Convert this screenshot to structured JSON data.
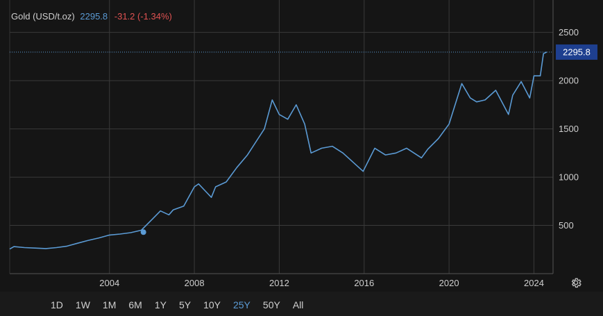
{
  "header": {
    "name": "Gold (USD/t.oz)",
    "price": "2295.8",
    "change": "-31.2 (-1.34%)"
  },
  "last_price_tag": "2295.8",
  "ranges": [
    {
      "label": "1D",
      "active": false
    },
    {
      "label": "1W",
      "active": false
    },
    {
      "label": "1M",
      "active": false
    },
    {
      "label": "6M",
      "active": false
    },
    {
      "label": "1Y",
      "active": false
    },
    {
      "label": "5Y",
      "active": false
    },
    {
      "label": "10Y",
      "active": false
    },
    {
      "label": "25Y",
      "active": true
    },
    {
      "label": "50Y",
      "active": false
    },
    {
      "label": "All",
      "active": false
    }
  ],
  "colors": {
    "line": "#5b9bd5",
    "price": "#5b9bd5",
    "change": "#e05252",
    "grid": "#3a3a3a",
    "tag_bg": "#1e3f8f"
  },
  "icons": {
    "settings": "gear-icon"
  },
  "chart_data": {
    "type": "line",
    "title": "Gold (USD/t.oz)",
    "xlabel": "",
    "ylabel": "",
    "x_ticks": [
      2004,
      2008,
      2012,
      2016,
      2020,
      2024
    ],
    "y_ticks": [
      500,
      1000,
      1500,
      2000,
      2500
    ],
    "xlim": [
      1999.3,
      2024.9
    ],
    "ylim": [
      0,
      2620
    ],
    "grid": true,
    "series": [
      {
        "name": "Gold",
        "x": [
          1999.3,
          1999.5,
          2000.0,
          2000.5,
          2001.0,
          2001.5,
          2002.0,
          2002.5,
          2003.0,
          2003.5,
          2004.0,
          2004.5,
          2005.0,
          2005.5,
          2006.0,
          2006.4,
          2006.8,
          2007.0,
          2007.5,
          2008.0,
          2008.2,
          2008.5,
          2008.8,
          2009.0,
          2009.5,
          2010.0,
          2010.5,
          2011.0,
          2011.3,
          2011.67,
          2012.0,
          2012.4,
          2012.8,
          2013.2,
          2013.5,
          2014.0,
          2014.5,
          2015.0,
          2015.5,
          2015.95,
          2016.5,
          2017.0,
          2017.5,
          2018.0,
          2018.7,
          2019.0,
          2019.5,
          2020.0,
          2020.6,
          2021.0,
          2021.3,
          2021.7,
          2022.2,
          2022.8,
          2023.0,
          2023.4,
          2023.8,
          2024.0,
          2024.3,
          2024.45,
          2024.6
        ],
        "values": [
          255,
          280,
          270,
          265,
          260,
          270,
          285,
          315,
          345,
          370,
          400,
          410,
          425,
          450,
          560,
          650,
          610,
          660,
          700,
          900,
          930,
          860,
          790,
          900,
          950,
          1100,
          1230,
          1400,
          1500,
          1800,
          1650,
          1600,
          1750,
          1550,
          1250,
          1300,
          1320,
          1250,
          1150,
          1060,
          1300,
          1230,
          1250,
          1300,
          1200,
          1290,
          1400,
          1550,
          1970,
          1820,
          1780,
          1800,
          1900,
          1650,
          1850,
          1990,
          1820,
          2050,
          2050,
          2280,
          2295.8
        ]
      }
    ]
  }
}
